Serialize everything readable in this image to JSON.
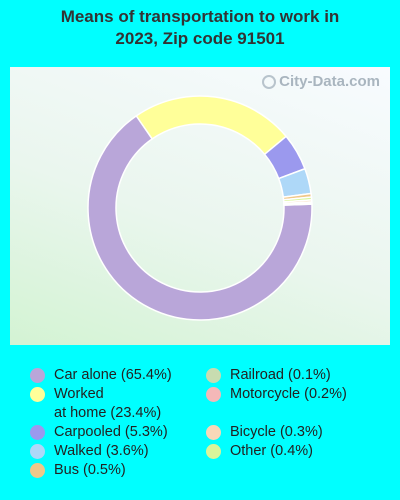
{
  "title_line1": "Means of transportation to work in",
  "title_line2": "2023, Zip code 91501",
  "watermark": "City-Data.com",
  "chart_data": {
    "type": "pie",
    "donut": true,
    "title": "Means of transportation to work in 2023, Zip code 91501",
    "legend_position": "bottom",
    "slices": [
      {
        "label": "Car alone",
        "value": 65.4,
        "color": "#b9a6d9",
        "legend": "Car alone (65.4%)"
      },
      {
        "label": "Worked at home",
        "value": 23.4,
        "color": "#ffff99",
        "legend_line1": "Worked",
        "legend_line2": "at home (23.4%)"
      },
      {
        "label": "Carpooled",
        "value": 5.3,
        "color": "#9b99ee",
        "legend": "Carpooled (5.3%)"
      },
      {
        "label": "Walked",
        "value": 3.6,
        "color": "#aed8f8",
        "legend": "Walked (3.6%)"
      },
      {
        "label": "Bus",
        "value": 0.5,
        "color": "#f0c88a",
        "legend": "Bus (0.5%)"
      },
      {
        "label": "Other",
        "value": 0.4,
        "color": "#d9f59a",
        "legend": "Other (0.4%)"
      },
      {
        "label": "Bicycle",
        "value": 0.3,
        "color": "#f8d8b8",
        "legend": "Bicycle (0.3%)"
      },
      {
        "label": "Motorcycle",
        "value": 0.2,
        "color": "#f4b8b8",
        "legend": "Motorcycle (0.2%)"
      },
      {
        "label": "Railroad",
        "value": 0.1,
        "color": "#c8dcb0",
        "legend": "Railroad (0.1%)"
      }
    ]
  }
}
